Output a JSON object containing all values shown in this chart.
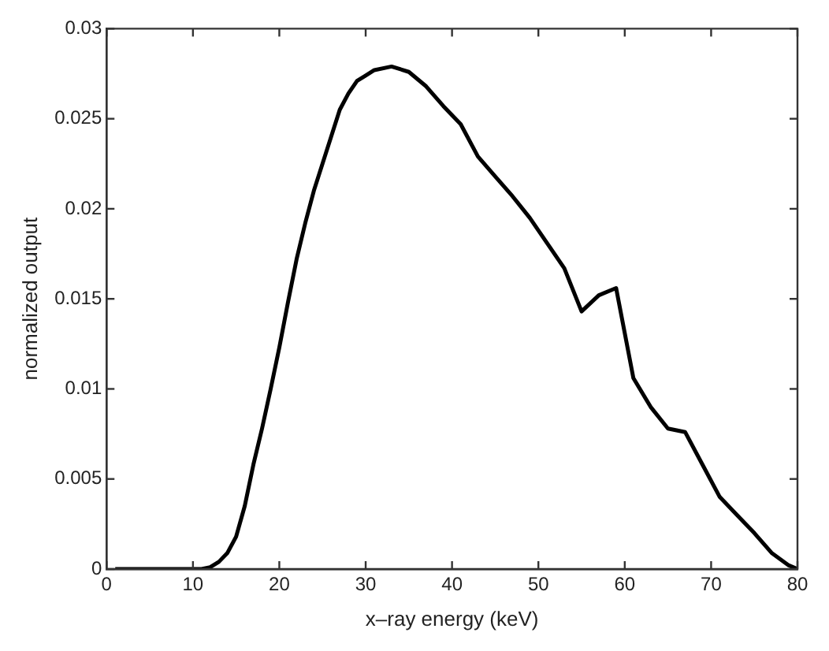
{
  "chart_data": {
    "type": "line",
    "xlabel": "x–ray energy (keV)",
    "ylabel": "normalized output",
    "x": [
      1,
      11,
      12,
      13,
      14,
      15,
      16,
      17,
      18,
      19,
      20,
      21,
      22,
      23,
      24,
      25,
      26,
      27,
      28,
      29,
      30,
      31,
      33,
      35,
      37,
      39,
      41,
      43,
      45,
      47,
      49,
      51,
      53,
      55,
      57,
      59,
      61,
      63,
      65,
      67,
      69,
      71,
      73,
      75,
      77,
      79,
      80
    ],
    "series": [
      {
        "color": "#000000",
        "values": [
          0,
          0,
          0.0001,
          0.0004,
          0.0009,
          0.0018,
          0.0035,
          0.0058,
          0.0078,
          0.01,
          0.0123,
          0.0148,
          0.0172,
          0.0192,
          0.021,
          0.0225,
          0.024,
          0.0255,
          0.0264,
          0.0271,
          0.0274,
          0.0277,
          0.0279,
          0.0276,
          0.0268,
          0.0257,
          0.0247,
          0.0229,
          0.0218,
          0.0207,
          0.0195,
          0.0181,
          0.0167,
          0.0143,
          0.0152,
          0.0156,
          0.0106,
          0.009,
          0.0078,
          0.0076,
          0.0058,
          0.004,
          0.003,
          0.002,
          0.0009,
          0.0002,
          0
        ]
      }
    ],
    "xlim": [
      0,
      80
    ],
    "xticks": [
      0,
      10,
      20,
      30,
      40,
      50,
      60,
      70,
      80
    ],
    "ylim": [
      0,
      0.03
    ],
    "yticks": [
      0,
      0.005,
      0.01,
      0.015,
      0.02,
      0.025,
      0.03
    ],
    "grid": false,
    "legend": false,
    "marker": "none",
    "line_style": "solid"
  }
}
